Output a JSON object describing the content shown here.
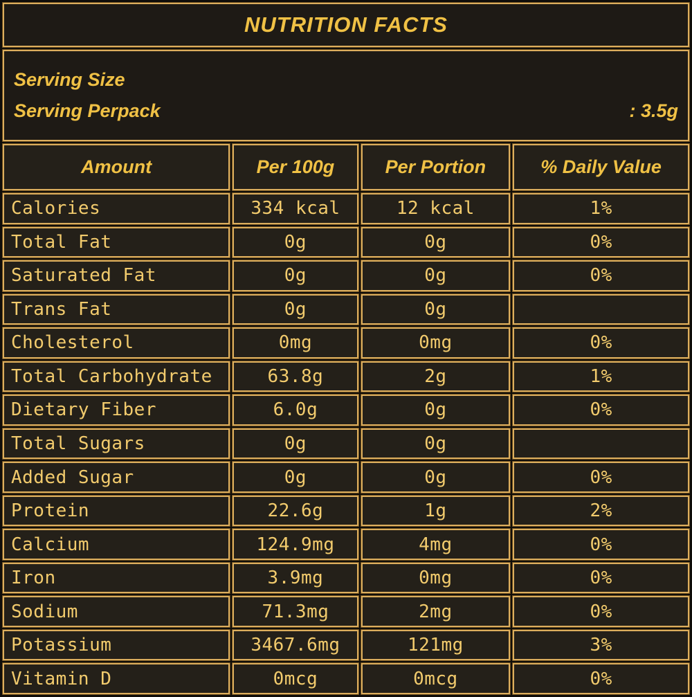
{
  "title": "NUTRITION FACTS",
  "serving": {
    "size_label": "Serving Size",
    "size_value": "",
    "perpack_label": "Serving Perpack",
    "perpack_value": ": 3.5g"
  },
  "table": {
    "headers": [
      "Amount",
      "Per 100g",
      "Per Portion",
      "% Daily Value"
    ],
    "rows": [
      [
        "Calories",
        "334 kcal",
        "12 kcal",
        "1%"
      ],
      [
        "Total Fat",
        "0g",
        "0g",
        "0%"
      ],
      [
        "Saturated Fat",
        "0g",
        "0g",
        "0%"
      ],
      [
        "Trans Fat",
        "0g",
        "0g",
        ""
      ],
      [
        "Cholesterol",
        "0mg",
        "0mg",
        "0%"
      ],
      [
        "Total Carbohydrate",
        "63.8g",
        "2g",
        "1%"
      ],
      [
        "Dietary Fiber",
        "6.0g",
        "0g",
        "0%"
      ],
      [
        "Total Sugars",
        "0g",
        "0g",
        ""
      ],
      [
        "Added Sugar",
        "0g",
        "0g",
        "0%"
      ],
      [
        "Protein",
        "22.6g",
        "1g",
        "2%"
      ],
      [
        "Calcium",
        "124.9mg",
        "4mg",
        "0%"
      ],
      [
        "Iron",
        "3.9mg",
        "0mg",
        "0%"
      ],
      [
        "Sodium",
        "71.3mg",
        "2mg",
        "0%"
      ],
      [
        "Potassium",
        "3467.6mg",
        "121mg",
        "3%"
      ],
      [
        "Vitamin D",
        "0mcg",
        "0mcg",
        "0%"
      ]
    ]
  },
  "colors": {
    "page_bg": "#0f0d0a",
    "cell_bg": "#242019",
    "cell_bg_dark": "#1e1a15",
    "border_gold": "#dcae5e",
    "heading_text": "#f0c145",
    "body_text": "#f2cb6d"
  }
}
